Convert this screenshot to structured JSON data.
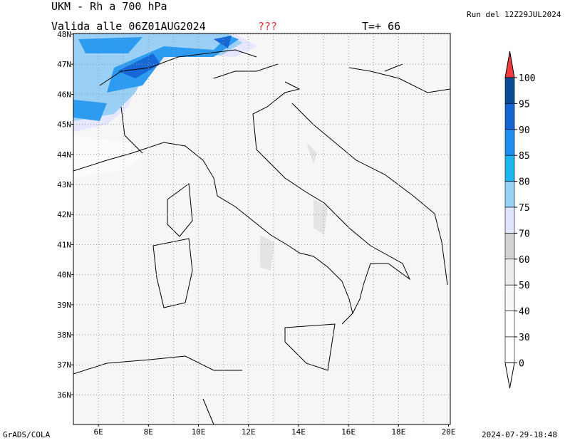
{
  "header": {
    "title": "UKM - Rh a 700 hPa",
    "valid": "Valida alle 06Z01AUG2024",
    "flag": "???",
    "step": "T=+ 66",
    "run": "Run del 12Z29JUL2024"
  },
  "map": {
    "lat_labels": [
      "48N",
      "47N",
      "46N",
      "45N",
      "44N",
      "43N",
      "42N",
      "41N",
      "40N",
      "39N",
      "38N",
      "37N",
      "36N"
    ],
    "lon_labels": [
      "6E",
      "8E",
      "10E",
      "12E",
      "14E",
      "16E",
      "18E",
      "20E"
    ]
  },
  "legend": {
    "levels": [
      "100",
      "95",
      "90",
      "85",
      "80",
      "75",
      "70",
      "60",
      "50",
      "40",
      "30",
      "0"
    ]
  },
  "footer": {
    "left": "GrADS/COLA",
    "right": "2024-07-29-18:48"
  }
}
